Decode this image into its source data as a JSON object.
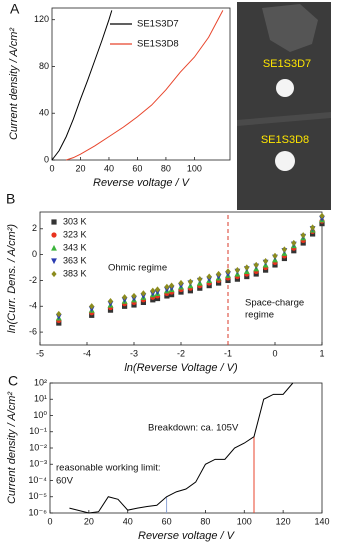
{
  "chart_data": [
    {
      "type": "line",
      "panel": "A",
      "xlabel": "Reverse voltage / V",
      "ylabel": "Current density / A/cm²",
      "xlim": [
        0,
        125
      ],
      "ylim": [
        0,
        130
      ],
      "xticks": [
        0,
        20,
        40,
        60,
        80,
        100
      ],
      "yticks": [
        0,
        40,
        80,
        120
      ],
      "legend": "upper center",
      "series": [
        {
          "name": "SE1S3D7",
          "color": "#000000",
          "x": [
            0,
            5,
            10,
            15,
            20,
            25,
            30,
            35,
            40,
            42
          ],
          "values": [
            0,
            8,
            20,
            35,
            52,
            68,
            85,
            102,
            120,
            128
          ]
        },
        {
          "name": "SE1S3D8",
          "color": "#e8452c",
          "x": [
            10,
            15,
            20,
            30,
            40,
            50,
            60,
            70,
            80,
            90,
            100,
            110,
            120
          ],
          "values": [
            0,
            2,
            5,
            12,
            20,
            28,
            37,
            47,
            60,
            75,
            88,
            105,
            128
          ]
        }
      ]
    },
    {
      "type": "scatter",
      "panel": "B",
      "xlabel": "ln(Reverse Voltage / V)",
      "ylabel": "ln(Curr. Dens. / A/cm²)",
      "xlim": [
        -5,
        1
      ],
      "ylim": [
        -7,
        3.3
      ],
      "xticks": [
        -5,
        -4,
        -3,
        -2,
        -1,
        0,
        1
      ],
      "yticks": [
        -6,
        -4,
        -2,
        0,
        2
      ],
      "legend": "upper left",
      "annotations": [
        "Ohmic regime",
        "Space-charge",
        "regime"
      ],
      "vlines": [
        {
          "x": -1,
          "color": "#d9382a",
          "dashed": true
        }
      ],
      "x": [
        -4.6,
        -3.9,
        -3.5,
        -3.2,
        -3.0,
        -2.8,
        -2.6,
        -2.5,
        -2.3,
        -2.2,
        -2.0,
        -1.8,
        -1.6,
        -1.4,
        -1.2,
        -1.0,
        -0.8,
        -0.6,
        -0.4,
        -0.2,
        0,
        0.2,
        0.4,
        0.6,
        0.8,
        1.0
      ],
      "series": [
        {
          "name": "303 K",
          "color": "#333333",
          "marker": "square",
          "values": [
            -5.3,
            -4.7,
            -4.3,
            -4.0,
            -3.9,
            -3.7,
            -3.5,
            -3.4,
            -3.2,
            -3.1,
            -2.9,
            -2.8,
            -2.6,
            -2.4,
            -2.2,
            -2.0,
            -1.9,
            -1.7,
            -1.5,
            -1.2,
            -0.8,
            -0.3,
            0.3,
            0.9,
            1.6,
            2.4
          ]
        },
        {
          "name": "323 K",
          "color": "#e8321e",
          "marker": "circle",
          "values": [
            -5.1,
            -4.5,
            -4.1,
            -3.8,
            -3.7,
            -3.5,
            -3.3,
            -3.2,
            -3.0,
            -2.9,
            -2.7,
            -2.6,
            -2.4,
            -2.2,
            -2.0,
            -1.8,
            -1.7,
            -1.5,
            -1.3,
            -1.0,
            -0.6,
            -0.1,
            0.5,
            1.1,
            1.8,
            2.6
          ]
        },
        {
          "name": "343 K",
          "color": "#3cb43c",
          "marker": "triangle-up",
          "values": [
            -4.9,
            -4.3,
            -3.9,
            -3.6,
            -3.5,
            -3.3,
            -3.1,
            -3.0,
            -2.8,
            -2.7,
            -2.5,
            -2.4,
            -2.2,
            -2.0,
            -1.8,
            -1.6,
            -1.5,
            -1.3,
            -1.1,
            -0.8,
            -0.4,
            0.1,
            0.7,
            1.3,
            1.9,
            2.7
          ]
        },
        {
          "name": "363 K",
          "color": "#2a3bb0",
          "marker": "triangle-down",
          "values": [
            -4.8,
            -4.2,
            -3.8,
            -3.5,
            -3.4,
            -3.2,
            -3.0,
            -2.9,
            -2.7,
            -2.6,
            -2.4,
            -2.2,
            -2.0,
            -1.9,
            -1.7,
            -1.5,
            -1.3,
            -1.1,
            -0.9,
            -0.6,
            -0.2,
            0.3,
            0.8,
            1.4,
            2.0,
            2.8
          ]
        },
        {
          "name": "383 K",
          "color": "#8c8c1e",
          "marker": "diamond",
          "values": [
            -4.6,
            -4.0,
            -3.6,
            -3.3,
            -3.2,
            -3.0,
            -2.8,
            -2.7,
            -2.5,
            -2.4,
            -2.2,
            -2.1,
            -1.9,
            -1.7,
            -1.5,
            -1.3,
            -1.2,
            -1.0,
            -0.8,
            -0.5,
            -0.1,
            0.4,
            0.9,
            1.5,
            2.1,
            3.0
          ]
        }
      ]
    },
    {
      "type": "line",
      "panel": "C",
      "xlabel": "Reverse voltage / V",
      "ylabel": "Current density / A/cm²",
      "ylog": true,
      "xlim": [
        0,
        140
      ],
      "ylim": [
        1e-06,
        100
      ],
      "xticks": [
        0,
        20,
        40,
        60,
        80,
        100,
        120,
        140
      ],
      "yticks": [
        {
          "value": 1e-06,
          "label": "10⁻⁶"
        },
        {
          "value": 1e-05,
          "label": "10⁻⁵"
        },
        {
          "value": 0.0001,
          "label": "10⁻⁴"
        },
        {
          "value": 0.001,
          "label": "10⁻³"
        },
        {
          "value": 0.01,
          "label": "10⁻²"
        },
        {
          "value": 0.1,
          "label": "10⁻¹"
        },
        {
          "value": 1,
          "label": "10⁰"
        },
        {
          "value": 10,
          "label": "10¹"
        },
        {
          "value": 100,
          "label": "10²"
        }
      ],
      "annotations": [
        "Breakdown: ca. 105V",
        "reasonable working limit:",
        "60V"
      ],
      "vlines": [
        {
          "x": 60,
          "color": "#8fa6d6"
        },
        {
          "x": 105,
          "color": "#e8452c"
        }
      ],
      "x": [
        10,
        20,
        25,
        30,
        35,
        40,
        45,
        50,
        55,
        60,
        65,
        70,
        75,
        80,
        85,
        90,
        95,
        100,
        105,
        110,
        115,
        120,
        125
      ],
      "series": [
        {
          "color": "#000000",
          "values": [
            2e-06,
            1e-06,
            1.2e-06,
            1e-05,
            7e-06,
            1.5e-06,
            2e-06,
            2.5e-06,
            3e-06,
            1e-05,
            2e-05,
            3e-05,
            8e-05,
            0.001,
            0.002,
            0.002,
            0.01,
            0.02,
            0.05,
            10,
            20,
            20,
            100
          ]
        }
      ]
    }
  ],
  "image": {
    "labels": [
      "SE1S3D7",
      "SE1S3D8"
    ]
  }
}
